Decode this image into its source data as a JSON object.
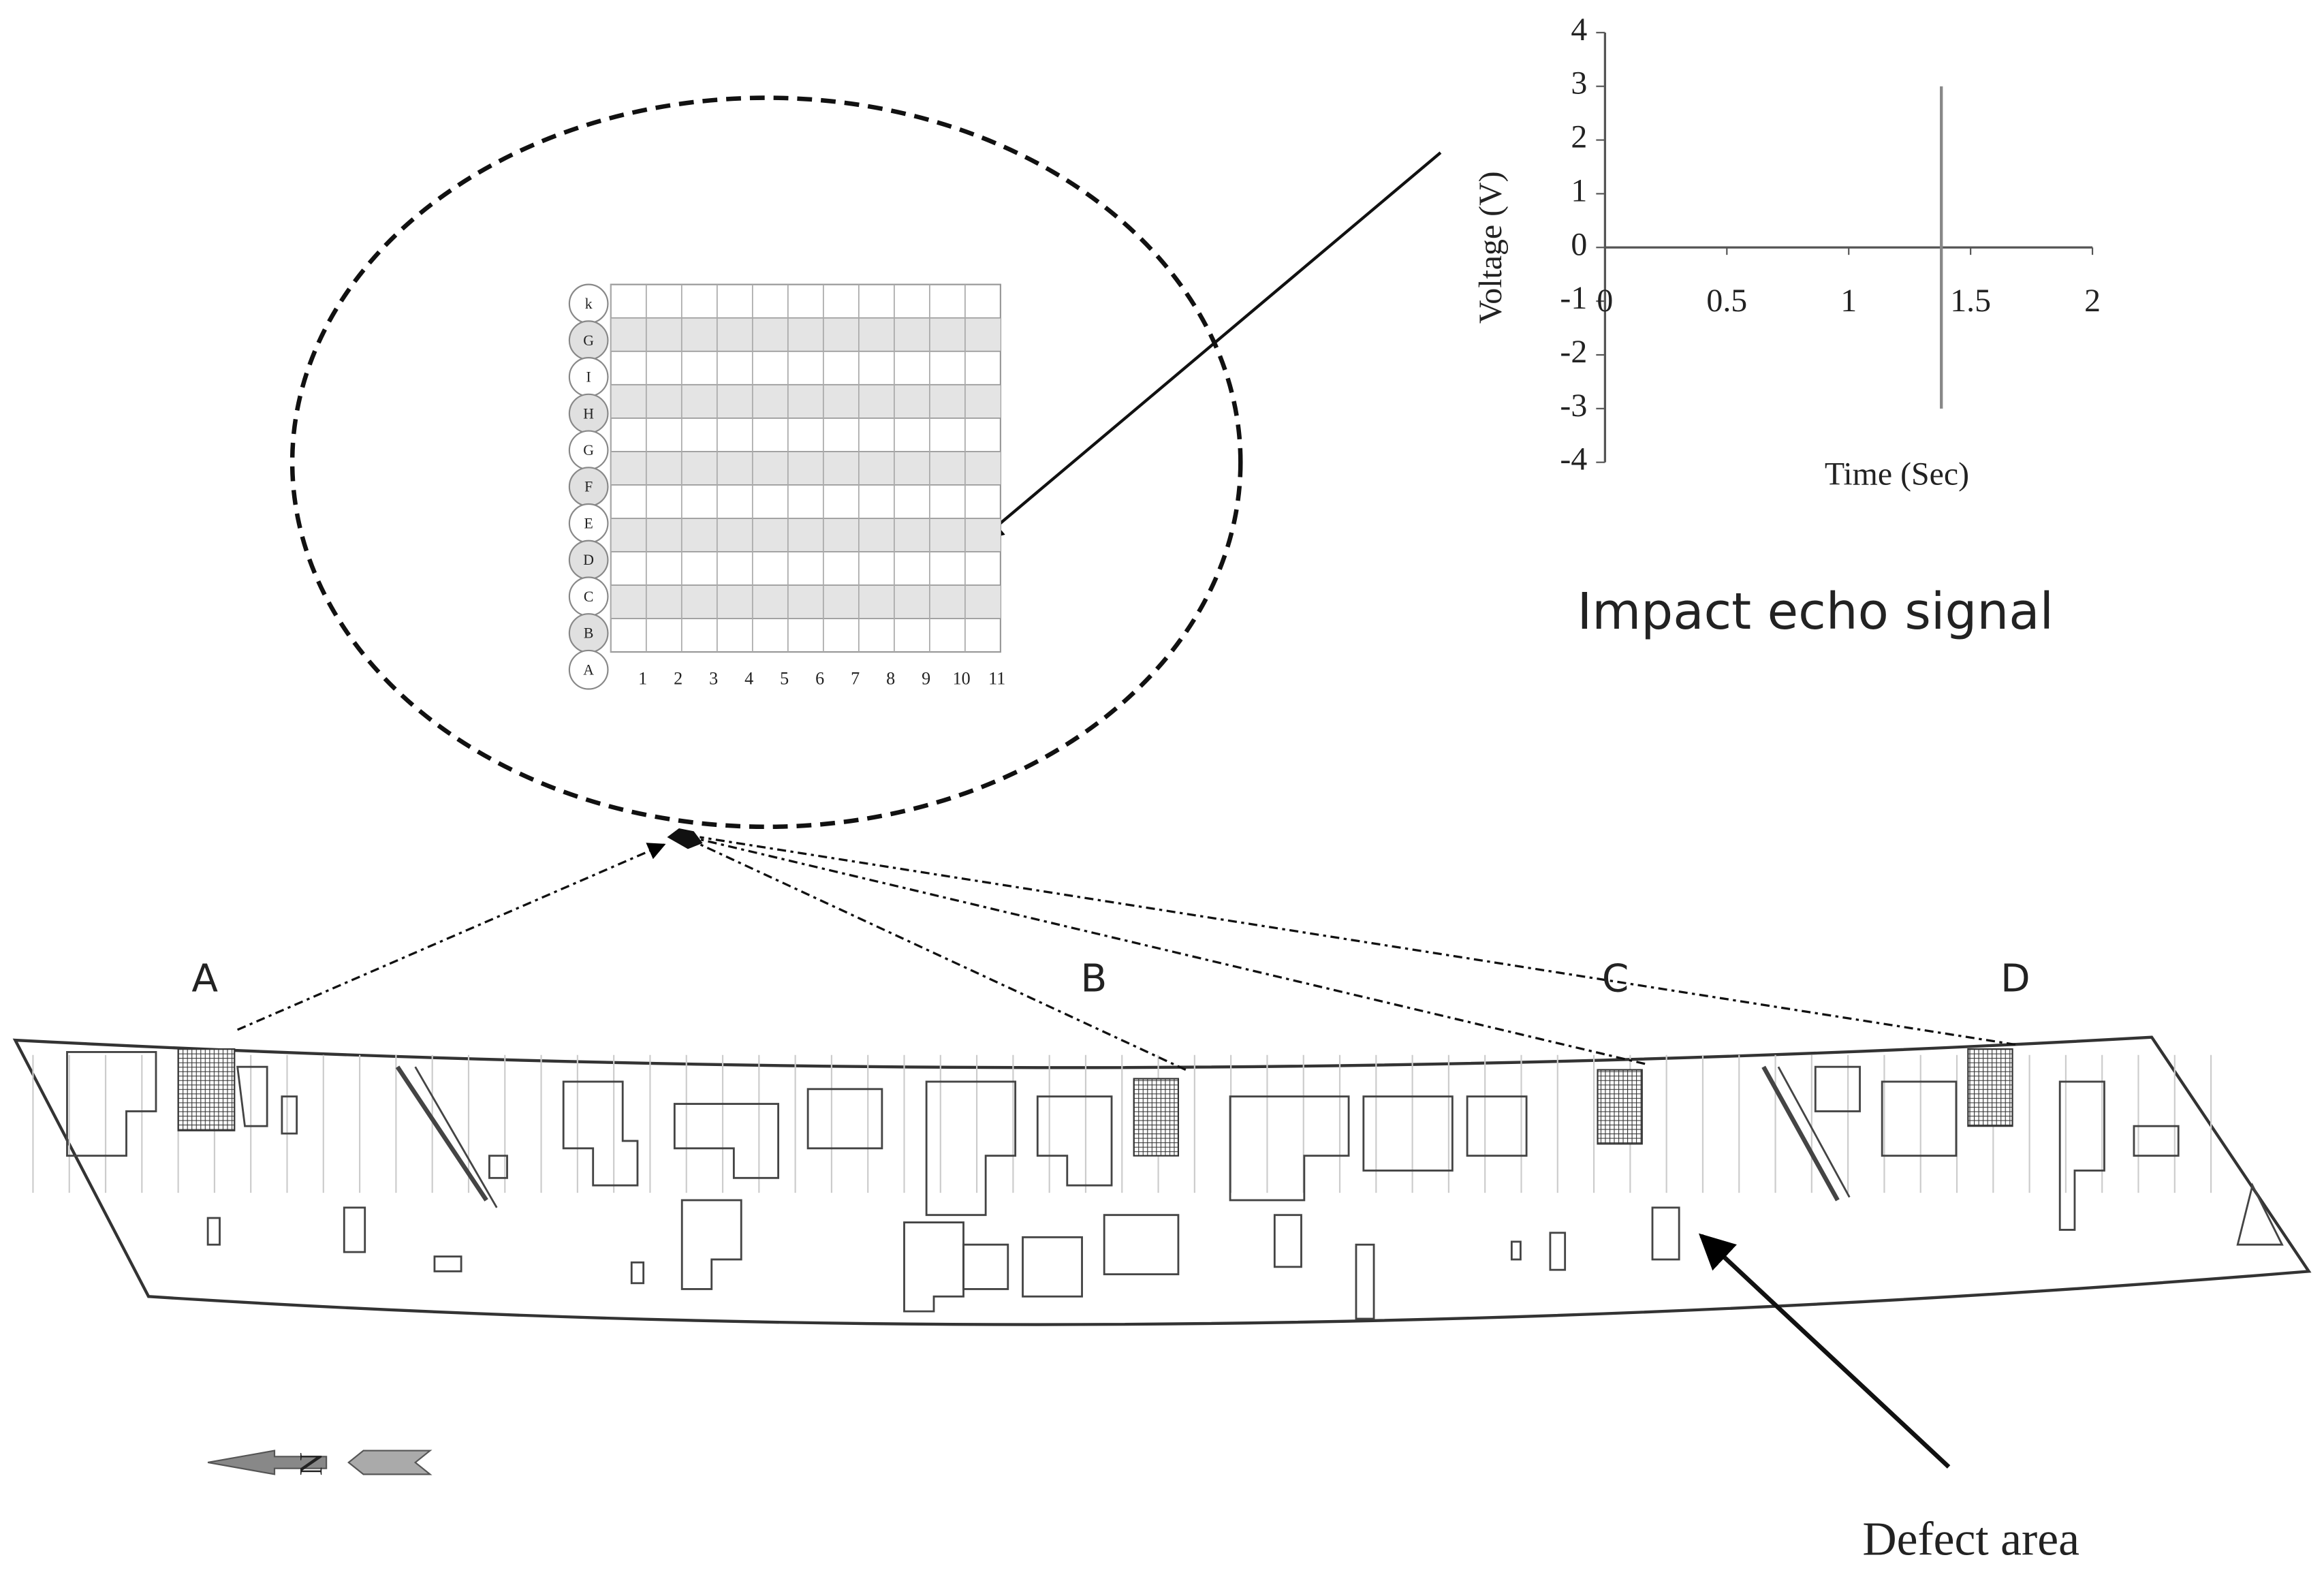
{
  "grid": {
    "row_labels": [
      "k",
      "G",
      "I",
      "H",
      "G",
      "F",
      "E",
      "D",
      "C",
      "B",
      "A"
    ],
    "column_labels": [
      "1",
      "2",
      "3",
      "4",
      "5",
      "6",
      "7",
      "8",
      "9",
      "10",
      "11"
    ]
  },
  "chart_data": {
    "type": "line",
    "xlabel": "Time (Sec)",
    "ylabel": "Voltage (V)",
    "caption": "Impact echo signal",
    "x": [
      1.38,
      1.38
    ],
    "values": [
      3,
      -3
    ],
    "color": "#888888",
    "xlim": [
      0,
      2
    ],
    "ylim": [
      -4,
      4
    ],
    "xticks": [
      0,
      0.5,
      1,
      1.5,
      2
    ],
    "yticks": [
      -4,
      -3,
      -2,
      -1,
      0,
      1,
      2,
      3,
      4
    ]
  },
  "sections": [
    "A",
    "B",
    "C",
    "D"
  ],
  "compass": "N",
  "annotation": "Defect area"
}
